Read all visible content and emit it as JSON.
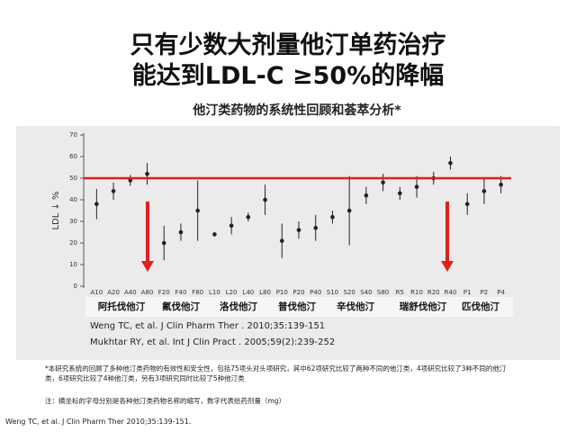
{
  "slide": {
    "title_lines": [
      "只有少数大剂量他汀单药治疗",
      "能达到LDL-C ≥50%的降幅"
    ],
    "citations": [
      "Weng TC, et al. J Clin Pharm Ther . 2010;35:139-151",
      "Mukhtar RY, et al. Int J Clin Pract . 2005;59(2):239-252"
    ],
    "notes": [
      "*本研究系统的回顾了多种他汀类药物的有效性和安全性，包括75项头对头项研究，其中62项研究比较了两种不同的他汀类，4项研究比较了3种不同的他汀类，6项研究比较了4种他汀类，另有3项研究同时比较了5种他汀类",
      "注：横坐标的字母分别是各种他汀类药物名称的缩写，数字代表给药剂量（mg）"
    ],
    "footer": "Weng TC, et al. J Clin Pharm Ther 2010;35:139-151."
  },
  "chart_data": {
    "type": "errorbar",
    "title": "他汀类药物的系统性回顾和荟萃分析*",
    "y_label": "LDL ↓ %",
    "categories": [
      "A10",
      "A20",
      "A40",
      "A80",
      "F20",
      "F40",
      "F80",
      "L10",
      "L20",
      "L40",
      "L80",
      "P10",
      "P20",
      "P40",
      "S10",
      "S20",
      "S40",
      "S80",
      "R5",
      "R10",
      "R20",
      "R40",
      "P1",
      "P2",
      "P4"
    ],
    "series": [
      {
        "color": "#222222",
        "values": [
          38,
          44,
          49,
          52,
          20,
          25,
          35,
          24,
          28,
          32,
          40,
          21,
          26,
          27,
          32,
          35,
          42,
          48,
          43,
          46,
          50,
          57,
          38,
          44,
          47
        ],
        "errors": [
          7,
          4,
          2.5,
          5,
          8,
          4,
          14,
          1,
          4,
          2,
          7,
          8,
          4,
          6,
          3,
          16,
          4,
          4,
          3,
          5,
          3,
          3,
          5,
          6,
          4
        ]
      }
    ],
    "groups": [
      "阿托伐他汀",
      "氟伐他汀",
      "洛伐他汀",
      "普伐他汀",
      "辛伐他汀",
      "瑞舒伐他汀",
      "匹伐他汀"
    ],
    "reference_line": {
      "value": 50,
      "color": "#e0201b"
    },
    "ylim": [
      0,
      70
    ],
    "yticks": [
      0,
      10,
      20,
      30,
      40,
      50,
      60,
      70
    ]
  }
}
